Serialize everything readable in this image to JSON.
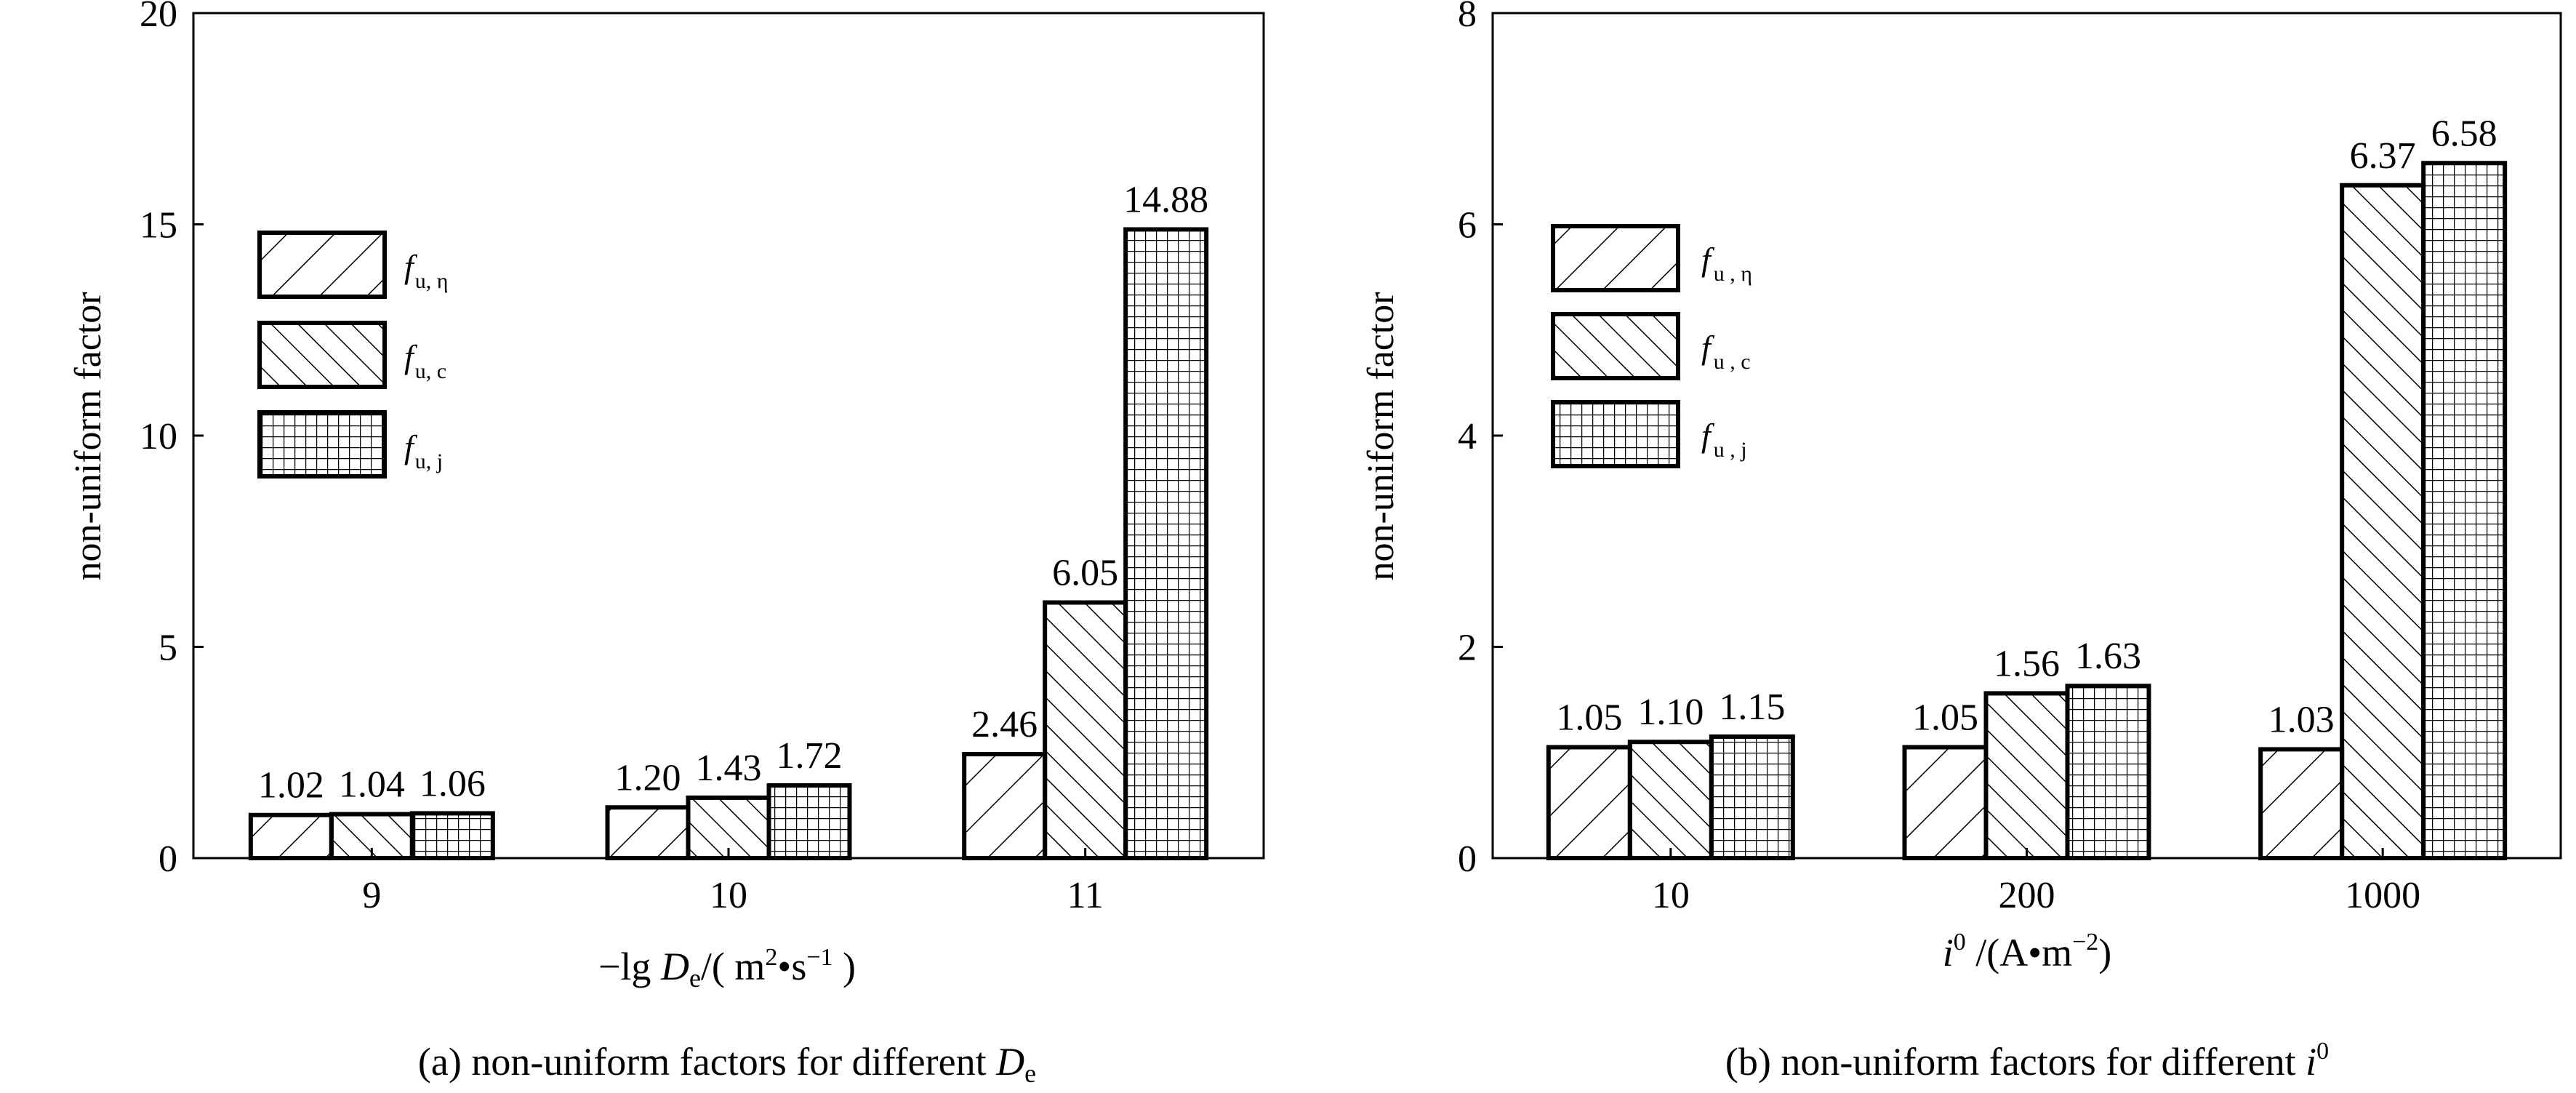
{
  "chart_data": [
    {
      "type": "bar",
      "panel": "a",
      "categories": [
        "9",
        "10",
        "11"
      ],
      "series": [
        {
          "name": "f_u,η",
          "pattern": "hatch-forward",
          "values": [
            1.02,
            1.2,
            2.46
          ],
          "labels": [
            "1.02",
            "1.20",
            "2.46"
          ]
        },
        {
          "name": "f_u,c",
          "pattern": "hatch-back",
          "values": [
            1.04,
            1.43,
            6.05
          ],
          "labels": [
            "1.04",
            "1.43",
            "6.05"
          ]
        },
        {
          "name": "f_u,j",
          "pattern": "grid",
          "values": [
            1.06,
            1.72,
            14.88
          ],
          "labels": [
            "1.06",
            "1.72",
            "14.88"
          ]
        }
      ],
      "legend": [
        {
          "base": "f",
          "sub": "u, η"
        },
        {
          "base": "f",
          "sub": "u, c"
        },
        {
          "base": "f",
          "sub": "u, j"
        }
      ],
      "legend_position": "upper-left",
      "ylabel": "non-uniform factor",
      "xlabel": "−lg De/( m²•s⁻¹ )",
      "xlabel_parts": {
        "prefix": "−lg ",
        "sym": "D",
        "sub": "e",
        "rest1": "/( m",
        "sup1": "2",
        "rest2": "•s",
        "sup2": "−1",
        "rest3": " )"
      },
      "ylim": [
        0,
        20
      ],
      "yticks": [
        "0",
        "5",
        "10",
        "15",
        "20"
      ],
      "caption": "(a) non-uniform factors for different De",
      "caption_parts": {
        "text": "(a) non-uniform factors for different ",
        "sym": "D",
        "sub": "e"
      }
    },
    {
      "type": "bar",
      "panel": "b",
      "categories": [
        "10",
        "200",
        "1000"
      ],
      "series": [
        {
          "name": "f_u,η",
          "pattern": "hatch-forward",
          "values": [
            1.05,
            1.05,
            1.03
          ],
          "labels": [
            "1.05",
            "1.05",
            "1.03"
          ]
        },
        {
          "name": "f_u,c",
          "pattern": "hatch-back",
          "values": [
            1.1,
            1.56,
            6.37
          ],
          "labels": [
            "1.10",
            "1.56",
            "6.37"
          ]
        },
        {
          "name": "f_u,j",
          "pattern": "grid",
          "values": [
            1.15,
            1.63,
            6.58
          ],
          "labels": [
            "1.15",
            "1.63",
            "6.58"
          ]
        }
      ],
      "legend": [
        {
          "base": "f",
          "sub": "u , η"
        },
        {
          "base": "f",
          "sub": "u , c"
        },
        {
          "base": "f",
          "sub": "u , j"
        }
      ],
      "legend_position": "upper-left",
      "ylabel": "non-uniform factor",
      "xlabel": "i⁰ /(A•m⁻²)",
      "xlabel_parts": {
        "sym": "i",
        "sup0": "0",
        "rest1": " /(A•m",
        "sup1": "−2",
        "rest2": ")"
      },
      "ylim": [
        0,
        8
      ],
      "yticks": [
        "0",
        "2",
        "4",
        "6",
        "8"
      ],
      "caption": "(b) non-uniform factors for different i⁰",
      "caption_parts": {
        "text": "(b) non-uniform factors for different ",
        "sym": "i",
        "sup": "0"
      }
    }
  ]
}
